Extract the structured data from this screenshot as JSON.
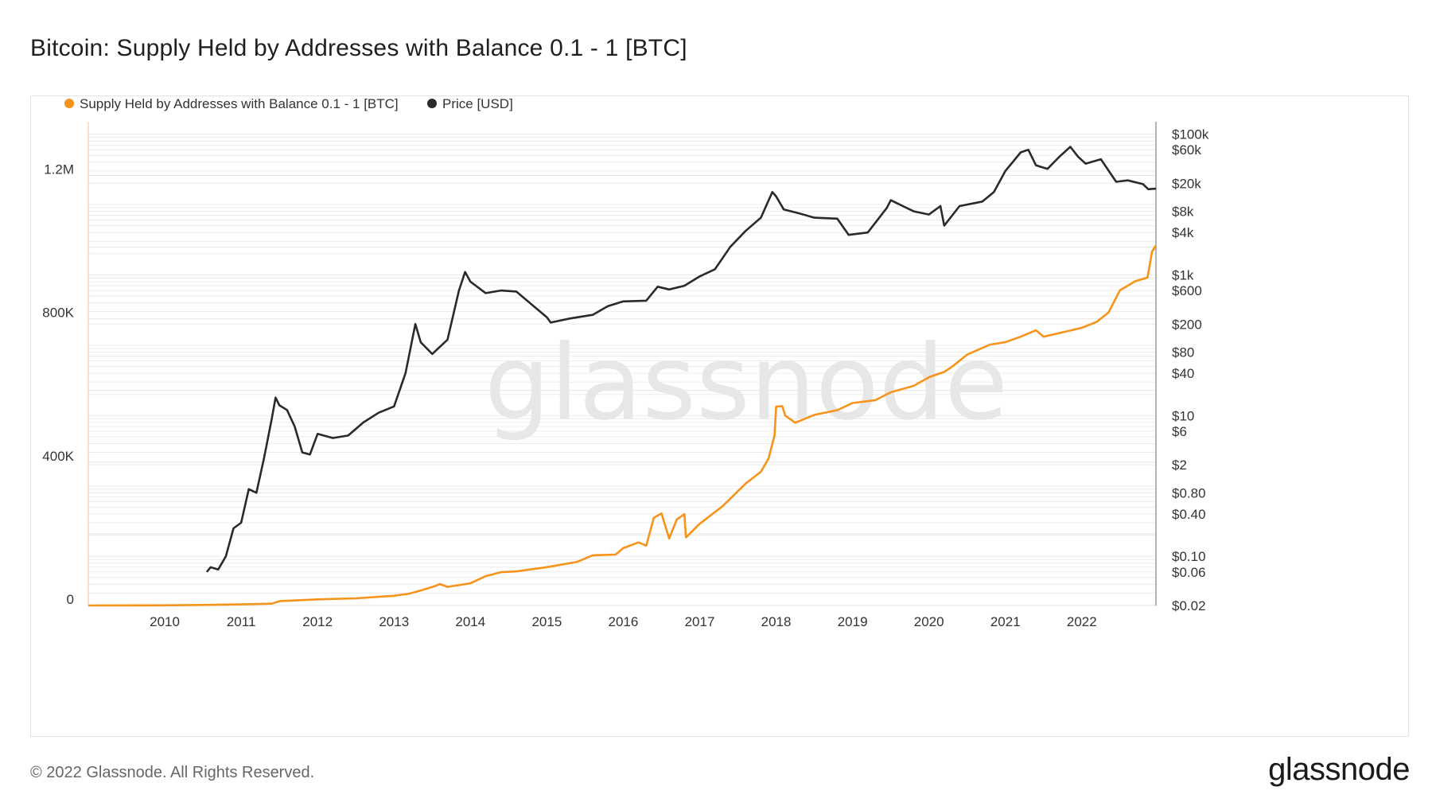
{
  "title": "Bitcoin: Supply Held by Addresses with Balance 0.1 - 1 [BTC]",
  "footer": {
    "copyright": "© 2022 Glassnode. All Rights Reserved.",
    "logo": "glassnode"
  },
  "watermark": "glassnode",
  "colors": {
    "supply": "#f7931a",
    "price": "#2a2a2a",
    "grid": "#ececec"
  },
  "chart_data": {
    "type": "line",
    "title": "Bitcoin: Supply Held by Addresses with Balance 0.1 - 1 [BTC]",
    "legend_position": "top-left",
    "grid": true,
    "x_axis": {
      "range": [
        2009.0,
        2022.97
      ],
      "ticks": [
        "2010",
        "2011",
        "2012",
        "2013",
        "2014",
        "2015",
        "2016",
        "2017",
        "2018",
        "2019",
        "2020",
        "2021",
        "2022"
      ]
    },
    "y_left": {
      "scale": "linear",
      "range": [
        0,
        1350000
      ],
      "ticks": [
        {
          "value": 0,
          "label": "0"
        },
        {
          "value": 400000,
          "label": "400K"
        },
        {
          "value": 800000,
          "label": "800K"
        },
        {
          "value": 1200000,
          "label": "1.2M"
        }
      ]
    },
    "y_right": {
      "scale": "log",
      "range": [
        0.02,
        150000
      ],
      "ticks": [
        {
          "value": 100000,
          "label": "$100k"
        },
        {
          "value": 60000,
          "label": "$60k"
        },
        {
          "value": 20000,
          "label": "$20k"
        },
        {
          "value": 8000,
          "label": "$8k"
        },
        {
          "value": 4000,
          "label": "$4k"
        },
        {
          "value": 1000,
          "label": "$1k"
        },
        {
          "value": 600,
          "label": "$600"
        },
        {
          "value": 200,
          "label": "$200"
        },
        {
          "value": 80,
          "label": "$80"
        },
        {
          "value": 40,
          "label": "$40"
        },
        {
          "value": 10,
          "label": "$10"
        },
        {
          "value": 6,
          "label": "$6"
        },
        {
          "value": 2,
          "label": "$2"
        },
        {
          "value": 0.8,
          "label": "$0.80"
        },
        {
          "value": 0.4,
          "label": "$0.40"
        },
        {
          "value": 0.1,
          "label": "$0.10"
        },
        {
          "value": 0.06,
          "label": "$0.06"
        },
        {
          "value": 0.02,
          "label": "$0.02"
        }
      ]
    },
    "series": [
      {
        "name": "Supply Held by Addresses with Balance 0.1 - 1 [BTC]",
        "axis": "left",
        "points": [
          [
            2009.0,
            0
          ],
          [
            2010.0,
            500
          ],
          [
            2010.5,
            1500
          ],
          [
            2011.0,
            3000
          ],
          [
            2011.4,
            5000
          ],
          [
            2011.5,
            12000
          ],
          [
            2011.8,
            15000
          ],
          [
            2012.0,
            17000
          ],
          [
            2012.5,
            20000
          ],
          [
            2013.0,
            27000
          ],
          [
            2013.2,
            33000
          ],
          [
            2013.35,
            42000
          ],
          [
            2013.55,
            55000
          ],
          [
            2013.6,
            60000
          ],
          [
            2013.7,
            52000
          ],
          [
            2014.0,
            62000
          ],
          [
            2014.2,
            82000
          ],
          [
            2014.4,
            93000
          ],
          [
            2014.6,
            95000
          ],
          [
            2015.0,
            107000
          ],
          [
            2015.4,
            122000
          ],
          [
            2015.6,
            140000
          ],
          [
            2015.9,
            142000
          ],
          [
            2016.0,
            160000
          ],
          [
            2016.2,
            176000
          ],
          [
            2016.3,
            167000
          ],
          [
            2016.4,
            245000
          ],
          [
            2016.5,
            257000
          ],
          [
            2016.6,
            187000
          ],
          [
            2016.7,
            240000
          ],
          [
            2016.8,
            255000
          ],
          [
            2016.82,
            190000
          ],
          [
            2017.0,
            228000
          ],
          [
            2017.3,
            277000
          ],
          [
            2017.6,
            340000
          ],
          [
            2017.8,
            373000
          ],
          [
            2017.9,
            410000
          ],
          [
            2017.98,
            475000
          ],
          [
            2018.0,
            555000
          ],
          [
            2018.08,
            556000
          ],
          [
            2018.12,
            530000
          ],
          [
            2018.25,
            510000
          ],
          [
            2018.5,
            532000
          ],
          [
            2018.8,
            545000
          ],
          [
            2019.0,
            565000
          ],
          [
            2019.3,
            573000
          ],
          [
            2019.5,
            595000
          ],
          [
            2019.8,
            613000
          ],
          [
            2020.0,
            637000
          ],
          [
            2020.2,
            652000
          ],
          [
            2020.3,
            666000
          ],
          [
            2020.5,
            700000
          ],
          [
            2020.8,
            728000
          ],
          [
            2021.0,
            735000
          ],
          [
            2021.2,
            750000
          ],
          [
            2021.4,
            768000
          ],
          [
            2021.5,
            750000
          ],
          [
            2021.8,
            765000
          ],
          [
            2022.0,
            775000
          ],
          [
            2022.2,
            792000
          ],
          [
            2022.35,
            818000
          ],
          [
            2022.5,
            880000
          ],
          [
            2022.7,
            905000
          ],
          [
            2022.86,
            915000
          ],
          [
            2022.92,
            988000
          ],
          [
            2022.97,
            1005000
          ]
        ]
      },
      {
        "name": "Price [USD]",
        "axis": "right",
        "points": [
          [
            2010.55,
            0.06
          ],
          [
            2010.6,
            0.07
          ],
          [
            2010.7,
            0.065
          ],
          [
            2010.8,
            0.1
          ],
          [
            2010.9,
            0.25
          ],
          [
            2011.0,
            0.3
          ],
          [
            2011.1,
            0.9
          ],
          [
            2011.2,
            0.8
          ],
          [
            2011.3,
            2.5
          ],
          [
            2011.4,
            9
          ],
          [
            2011.45,
            18
          ],
          [
            2011.5,
            14
          ],
          [
            2011.6,
            12
          ],
          [
            2011.7,
            7
          ],
          [
            2011.8,
            3
          ],
          [
            2011.9,
            2.8
          ],
          [
            2012.0,
            5.5
          ],
          [
            2012.2,
            4.8
          ],
          [
            2012.4,
            5.2
          ],
          [
            2012.6,
            8
          ],
          [
            2012.8,
            11
          ],
          [
            2013.0,
            13.5
          ],
          [
            2013.15,
            40
          ],
          [
            2013.28,
            200
          ],
          [
            2013.35,
            110
          ],
          [
            2013.5,
            75
          ],
          [
            2013.7,
            120
          ],
          [
            2013.85,
            600
          ],
          [
            2013.93,
            1100
          ],
          [
            2014.0,
            800
          ],
          [
            2014.2,
            550
          ],
          [
            2014.4,
            600
          ],
          [
            2014.6,
            580
          ],
          [
            2014.8,
            380
          ],
          [
            2015.0,
            250
          ],
          [
            2015.05,
            210
          ],
          [
            2015.3,
            240
          ],
          [
            2015.6,
            270
          ],
          [
            2015.8,
            360
          ],
          [
            2016.0,
            420
          ],
          [
            2016.3,
            430
          ],
          [
            2016.45,
            680
          ],
          [
            2016.6,
            620
          ],
          [
            2016.8,
            700
          ],
          [
            2017.0,
            950
          ],
          [
            2017.2,
            1200
          ],
          [
            2017.4,
            2500
          ],
          [
            2017.6,
            4200
          ],
          [
            2017.8,
            6500
          ],
          [
            2017.95,
            15000
          ],
          [
            2018.0,
            13000
          ],
          [
            2018.1,
            8500
          ],
          [
            2018.3,
            7500
          ],
          [
            2018.5,
            6500
          ],
          [
            2018.8,
            6300
          ],
          [
            2018.95,
            3700
          ],
          [
            2019.2,
            4000
          ],
          [
            2019.45,
            9000
          ],
          [
            2019.5,
            11500
          ],
          [
            2019.8,
            8000
          ],
          [
            2020.0,
            7200
          ],
          [
            2020.15,
            9500
          ],
          [
            2020.2,
            5000
          ],
          [
            2020.4,
            9500
          ],
          [
            2020.7,
            11000
          ],
          [
            2020.85,
            15000
          ],
          [
            2021.0,
            30000
          ],
          [
            2021.2,
            55000
          ],
          [
            2021.3,
            60000
          ],
          [
            2021.4,
            36000
          ],
          [
            2021.55,
            32000
          ],
          [
            2021.7,
            47000
          ],
          [
            2021.85,
            66000
          ],
          [
            2021.95,
            48000
          ],
          [
            2022.05,
            38000
          ],
          [
            2022.25,
            44000
          ],
          [
            2022.45,
            21000
          ],
          [
            2022.6,
            22000
          ],
          [
            2022.8,
            19500
          ],
          [
            2022.87,
            16500
          ],
          [
            2022.97,
            16800
          ]
        ]
      }
    ]
  }
}
